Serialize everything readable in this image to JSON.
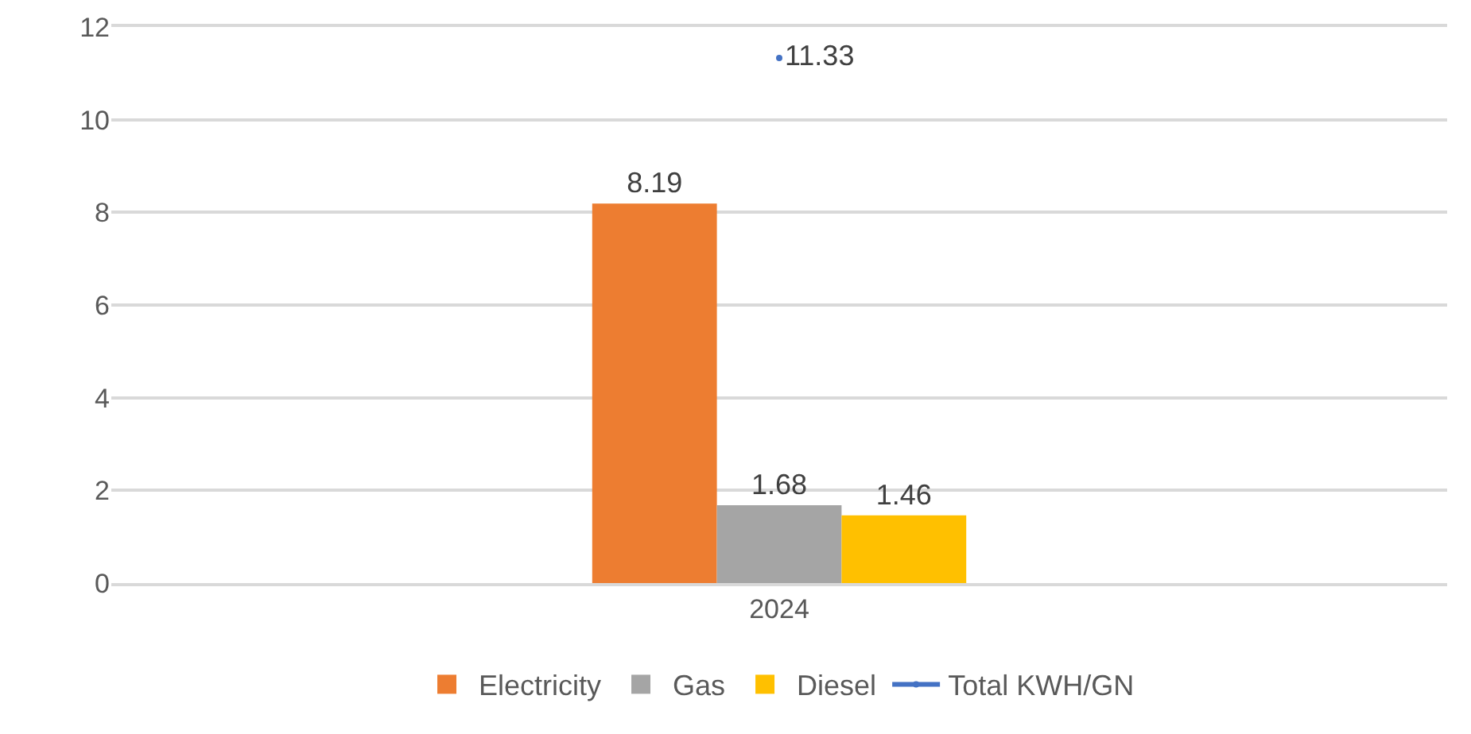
{
  "chart_data": {
    "type": "bar",
    "categories": [
      "2024"
    ],
    "series": [
      {
        "name": "Electricity",
        "color": "#ed7d31",
        "values": [
          8.19
        ]
      },
      {
        "name": "Gas",
        "color": "#a5a5a5",
        "values": [
          1.68
        ]
      },
      {
        "name": "Diesel",
        "color": "#ffc000",
        "values": [
          1.46
        ]
      },
      {
        "name": "Total KWH/GN",
        "color": "#4472c4",
        "type": "line",
        "marker": "circle",
        "values": [
          11.33
        ]
      }
    ],
    "ylim": [
      0,
      12
    ],
    "yticks": [
      0,
      2,
      4,
      6,
      8,
      10,
      12
    ],
    "grid": "y",
    "legend": "bottom",
    "data_labels": true
  }
}
